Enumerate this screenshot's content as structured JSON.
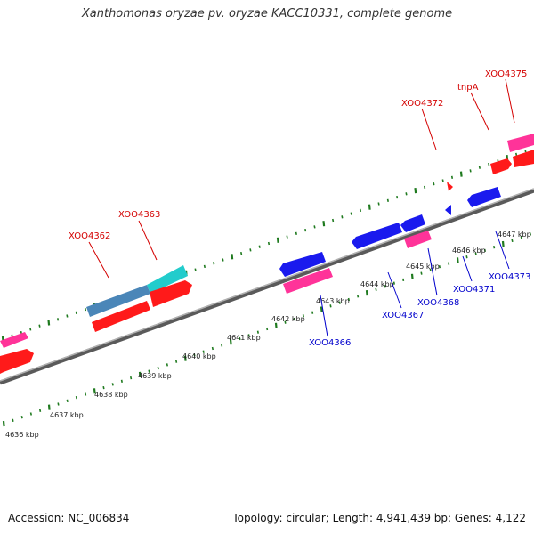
{
  "title": "Xanthomonas oryzae pv. oryzae KACC10331, complete genome",
  "footer": {
    "accession": "Accession: NC_006834",
    "summary": "Topology: circular; Length: 4,941,439 bp; Genes: 4,122"
  },
  "colors": {
    "backbone": "#8a8a8a",
    "ticks": "#1f7a1f",
    "forward_label": "#d40000",
    "reverse_label": "#0000cc",
    "cds_red": "#ff1a1a",
    "cds_pink": "#ff3399",
    "cds_blue": "#1a1aee",
    "cds_cyan": "#22cccc",
    "cds_steel": "#4a86b8"
  },
  "scale_labels": [
    "4636 kbp",
    "4637 kbp",
    "4638 kbp",
    "4639 kbp",
    "4640 kbp",
    "4641 kbp",
    "4642 kbp",
    "4643 kbp",
    "4644 kbp",
    "4645 kbp",
    "4646 kbp",
    "4647 kbp"
  ],
  "forward_gene_labels": [
    {
      "name": "XOO4362"
    },
    {
      "name": "XOO4363"
    },
    {
      "name": "XOO4372"
    },
    {
      "name": "tnpA"
    },
    {
      "name": "XOO4375"
    }
  ],
  "reverse_gene_labels": [
    {
      "name": "XOO4366"
    },
    {
      "name": "XOO4367"
    },
    {
      "name": "XOO4368"
    },
    {
      "name": "XOO4371"
    },
    {
      "name": "XOO4373"
    }
  ]
}
